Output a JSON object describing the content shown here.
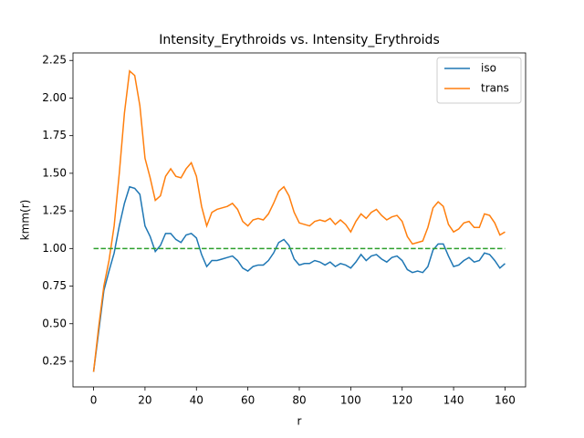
{
  "chart_data": {
    "type": "line",
    "title": "Intensity_Erythroids vs. Intensity_Erythroids",
    "x_label": "r",
    "y_label": "kmm(r)",
    "x": [
      0,
      2,
      4,
      6,
      8,
      10,
      12,
      14,
      16,
      18,
      20,
      22,
      24,
      26,
      28,
      30,
      32,
      34,
      36,
      38,
      40,
      42,
      44,
      46,
      48,
      50,
      52,
      54,
      56,
      58,
      60,
      62,
      64,
      66,
      68,
      70,
      72,
      74,
      76,
      78,
      80,
      82,
      84,
      86,
      88,
      90,
      92,
      94,
      96,
      98,
      100,
      102,
      104,
      106,
      108,
      110,
      112,
      114,
      116,
      118,
      120,
      122,
      124,
      126,
      128,
      130,
      132,
      134,
      136,
      138,
      140,
      142,
      144,
      146,
      148,
      150,
      152,
      154,
      156,
      158,
      160
    ],
    "series": [
      {
        "name": "iso",
        "color": "#1f77b4",
        "values": [
          0.18,
          0.45,
          0.72,
          0.85,
          0.97,
          1.15,
          1.3,
          1.41,
          1.4,
          1.36,
          1.15,
          1.08,
          0.98,
          1.02,
          1.1,
          1.1,
          1.06,
          1.04,
          1.09,
          1.1,
          1.07,
          0.96,
          0.88,
          0.92,
          0.92,
          0.93,
          0.94,
          0.95,
          0.92,
          0.87,
          0.85,
          0.88,
          0.89,
          0.89,
          0.92,
          0.97,
          1.04,
          1.06,
          1.02,
          0.93,
          0.89,
          0.9,
          0.9,
          0.92,
          0.91,
          0.89,
          0.91,
          0.88,
          0.9,
          0.89,
          0.87,
          0.91,
          0.96,
          0.92,
          0.95,
          0.96,
          0.93,
          0.91,
          0.94,
          0.95,
          0.92,
          0.86,
          0.84,
          0.85,
          0.84,
          0.88,
          0.99,
          1.03,
          1.03,
          0.95,
          0.88,
          0.89,
          0.92,
          0.94,
          0.91,
          0.92,
          0.97,
          0.96,
          0.92,
          0.87,
          0.9
        ]
      },
      {
        "name": "trans",
        "color": "#ff7f0e",
        "values": [
          0.18,
          0.48,
          0.75,
          0.92,
          1.15,
          1.5,
          1.9,
          2.18,
          2.15,
          1.95,
          1.6,
          1.47,
          1.32,
          1.35,
          1.48,
          1.53,
          1.48,
          1.47,
          1.53,
          1.57,
          1.48,
          1.28,
          1.15,
          1.24,
          1.26,
          1.27,
          1.28,
          1.3,
          1.26,
          1.18,
          1.15,
          1.19,
          1.2,
          1.19,
          1.23,
          1.3,
          1.38,
          1.41,
          1.35,
          1.24,
          1.17,
          1.16,
          1.15,
          1.18,
          1.19,
          1.18,
          1.2,
          1.16,
          1.19,
          1.16,
          1.11,
          1.18,
          1.23,
          1.2,
          1.24,
          1.26,
          1.22,
          1.19,
          1.21,
          1.22,
          1.18,
          1.08,
          1.03,
          1.04,
          1.05,
          1.14,
          1.27,
          1.31,
          1.28,
          1.16,
          1.11,
          1.13,
          1.17,
          1.18,
          1.14,
          1.14,
          1.23,
          1.22,
          1.17,
          1.09,
          1.11
        ]
      }
    ],
    "reference": {
      "x": [
        0,
        160
      ],
      "values": [
        1,
        1
      ],
      "color": "#2ca02c",
      "dashed": true
    },
    "xlim": [
      -8,
      168
    ],
    "ylim": [
      0.08,
      2.3
    ],
    "xticks": [
      0,
      20,
      40,
      60,
      80,
      100,
      120,
      140,
      160
    ],
    "yticks": [
      {
        "value": 0.25,
        "label": "0.25"
      },
      {
        "value": 0.5,
        "label": "0.50"
      },
      {
        "value": 0.75,
        "label": "0.75"
      },
      {
        "value": 1.0,
        "label": "1.00"
      },
      {
        "value": 1.25,
        "label": "1.25"
      },
      {
        "value": 1.5,
        "label": "1.50"
      },
      {
        "value": 1.75,
        "label": "1.75"
      },
      {
        "value": 2.0,
        "label": "2.00"
      },
      {
        "value": 2.25,
        "label": "2.25"
      }
    ],
    "legend": "upper right",
    "grid": false
  }
}
